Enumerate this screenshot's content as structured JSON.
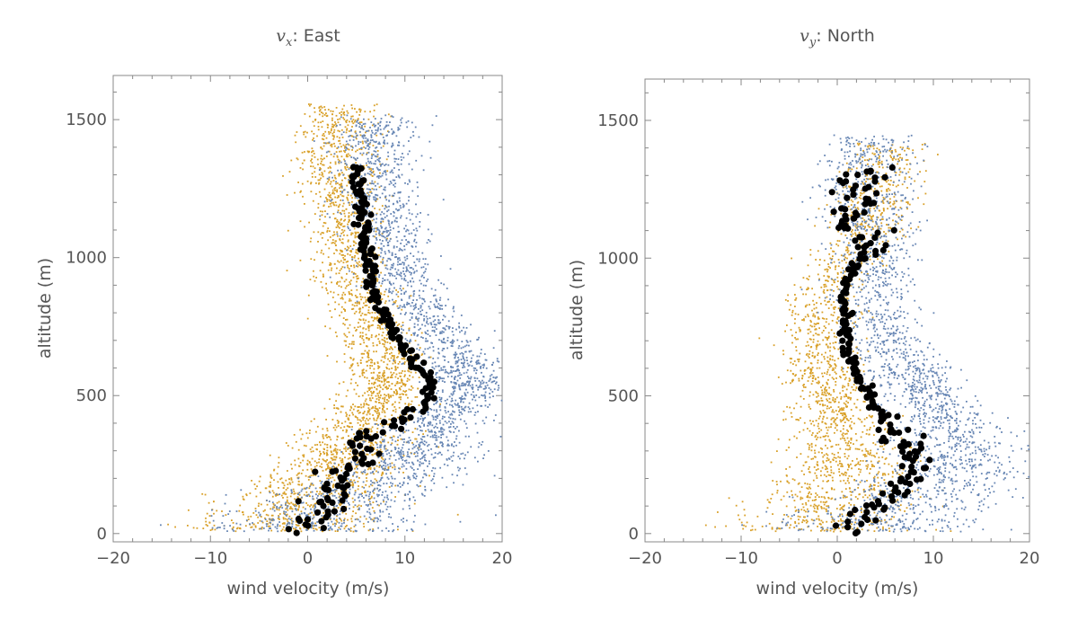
{
  "figure": {
    "palette": {
      "orange": "#d9a12a",
      "blue": "#6786b4",
      "black": "#000000"
    }
  },
  "chart_data": [
    {
      "type": "scatter",
      "title_var": "v",
      "title_sub": "x",
      "title_rest": ": East",
      "xlabel": "wind velocity (m/s)",
      "ylabel": "altitude (m)",
      "xlim": [
        -20,
        20
      ],
      "ylim": [
        -30,
        1660
      ],
      "xticks": [
        -20,
        -10,
        0,
        10,
        20
      ],
      "xtick_labels": [
        "−20",
        "−10",
        "0",
        "10",
        "20"
      ],
      "yticks": [
        0,
        500,
        1000,
        1500
      ],
      "ytick_labels": [
        "0",
        "500",
        "1000",
        "1500"
      ],
      "series": [
        {
          "name": "orange-scatter",
          "color": "orange",
          "count": 2600,
          "spread": 2.0
        },
        {
          "name": "blue-scatter",
          "color": "blue",
          "count": 2400,
          "spread": 2.2
        },
        {
          "name": "black-mean",
          "color": "black",
          "kind": "mean",
          "profile": [
            [
              20,
              -0.5
            ],
            [
              60,
              0.3
            ],
            [
              100,
              1.2
            ],
            [
              150,
              2.5
            ],
            [
              200,
              3.5
            ],
            [
              250,
              4.3
            ],
            [
              300,
              5.0
            ],
            [
              350,
              6.0
            ],
            [
              400,
              8.2
            ],
            [
              450,
              11.5
            ],
            [
              500,
              12.7
            ],
            [
              550,
              12.5
            ],
            [
              600,
              11.5
            ],
            [
              650,
              10.5
            ],
            [
              700,
              9.5
            ],
            [
              750,
              8.5
            ],
            [
              800,
              7.7
            ],
            [
              850,
              7.0
            ],
            [
              900,
              6.6
            ],
            [
              950,
              6.4
            ],
            [
              1000,
              6.2
            ],
            [
              1050,
              6.0
            ],
            [
              1100,
              5.8
            ],
            [
              1150,
              5.7
            ],
            [
              1200,
              5.5
            ],
            [
              1250,
              5.3
            ],
            [
              1300,
              5.0
            ],
            [
              1330,
              5.2
            ]
          ]
        }
      ],
      "orange_profile": [
        [
          20,
          -3.0
        ],
        [
          100,
          0.5
        ],
        [
          200,
          2.0
        ],
        [
          300,
          3.5
        ],
        [
          400,
          5.5
        ],
        [
          500,
          7.5
        ],
        [
          600,
          8.0
        ],
        [
          700,
          7.0
        ],
        [
          800,
          6.0
        ],
        [
          900,
          5.0
        ],
        [
          1000,
          4.2
        ],
        [
          1100,
          3.8
        ],
        [
          1200,
          3.5
        ],
        [
          1300,
          3.2
        ],
        [
          1500,
          3.0
        ]
      ],
      "blue_profile": [
        [
          40,
          0.0
        ],
        [
          100,
          3.0
        ],
        [
          200,
          7.5
        ],
        [
          300,
          10.5
        ],
        [
          400,
          13.0
        ],
        [
          500,
          16.5
        ],
        [
          600,
          15.5
        ],
        [
          700,
          13.5
        ],
        [
          800,
          11.5
        ],
        [
          900,
          10.0
        ],
        [
          1000,
          9.0
        ],
        [
          1100,
          8.0
        ],
        [
          1200,
          7.0
        ],
        [
          1300,
          6.5
        ],
        [
          1500,
          7.0
        ]
      ]
    },
    {
      "type": "scatter",
      "title_var": "v",
      "title_sub": "y",
      "title_rest": ": North",
      "xlabel": "wind velocity (m/s)",
      "ylabel": "altitude (m)",
      "xlim": [
        -20,
        20
      ],
      "ylim": [
        -30,
        1650
      ],
      "xticks": [
        -20,
        -10,
        0,
        10,
        20
      ],
      "xtick_labels": [
        "−20",
        "−10",
        "0",
        "10",
        "20"
      ],
      "yticks": [
        0,
        500,
        1000,
        1500
      ],
      "ytick_labels": [
        "0",
        "500",
        "1000",
        "1500"
      ],
      "series": [
        {
          "name": "orange-scatter",
          "color": "orange",
          "count": 1800,
          "spread": 2.0
        },
        {
          "name": "blue-scatter",
          "color": "blue",
          "count": 2000,
          "spread": 2.3
        },
        {
          "name": "black-mean",
          "color": "black",
          "kind": "mean",
          "profile": [
            [
              20,
              1.5
            ],
            [
              60,
              2.8
            ],
            [
              100,
              4.5
            ],
            [
              150,
              6.5
            ],
            [
              200,
              7.5
            ],
            [
              250,
              7.7
            ],
            [
              300,
              7.2
            ],
            [
              350,
              6.0
            ],
            [
              400,
              5.0
            ],
            [
              450,
              4.0
            ],
            [
              500,
              3.5
            ],
            [
              550,
              2.5
            ],
            [
              600,
              1.8
            ],
            [
              650,
              1.2
            ],
            [
              700,
              1.0
            ],
            [
              750,
              1.0
            ],
            [
              800,
              0.8
            ],
            [
              850,
              0.6
            ],
            [
              900,
              0.8
            ],
            [
              950,
              1.3
            ],
            [
              1000,
              2.5
            ],
            [
              1050,
              3.3
            ],
            [
              1100,
              2.8
            ],
            [
              1150,
              1.5
            ],
            [
              1200,
              2.5
            ],
            [
              1250,
              1.5
            ],
            [
              1300,
              2.0
            ],
            [
              1330,
              4.0
            ]
          ]
        }
      ],
      "orange_profile": [
        [
          20,
          -2.0
        ],
        [
          100,
          0.5
        ],
        [
          200,
          1.0
        ],
        [
          300,
          0.5
        ],
        [
          400,
          0.0
        ],
        [
          500,
          -1.0
        ],
        [
          600,
          -1.5
        ],
        [
          700,
          -2.0
        ],
        [
          800,
          -1.5
        ],
        [
          900,
          -1.0
        ],
        [
          1000,
          1.0
        ],
        [
          1100,
          3.0
        ],
        [
          1200,
          4.0
        ],
        [
          1300,
          4.5
        ],
        [
          1400,
          5.0
        ]
      ],
      "blue_profile": [
        [
          40,
          4.0
        ],
        [
          100,
          8.0
        ],
        [
          200,
          11.0
        ],
        [
          300,
          12.0
        ],
        [
          400,
          11.0
        ],
        [
          500,
          9.0
        ],
        [
          600,
          7.0
        ],
        [
          700,
          5.0
        ],
        [
          800,
          4.0
        ],
        [
          900,
          4.0
        ],
        [
          1000,
          3.5
        ],
        [
          1100,
          3.5
        ],
        [
          1200,
          3.0
        ],
        [
          1300,
          3.0
        ],
        [
          1450,
          3.0
        ]
      ]
    }
  ]
}
